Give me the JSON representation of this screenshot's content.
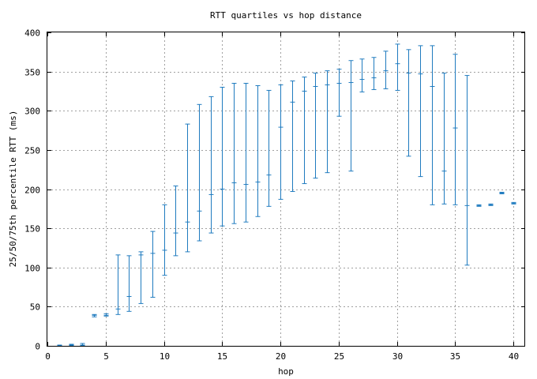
{
  "chart_data": {
    "type": "errorbar",
    "title": "RTT quartiles vs hop distance",
    "xlabel": "hop",
    "ylabel": "25/50/75th percentile RTT (ms)",
    "xlim": [
      0,
      41
    ],
    "ylim": [
      0,
      400
    ],
    "xticks": [
      0,
      5,
      10,
      15,
      20,
      25,
      30,
      35,
      40
    ],
    "yticks": [
      0,
      50,
      100,
      150,
      200,
      250,
      300,
      350,
      400
    ],
    "grid": true,
    "color": "#1f7bbf",
    "points": [
      {
        "hop": 1,
        "p25": 0,
        "p50": 1,
        "p75": 1
      },
      {
        "hop": 2,
        "p25": 0,
        "p50": 1,
        "p75": 2
      },
      {
        "hop": 3,
        "p25": 0,
        "p50": 1,
        "p75": 3
      },
      {
        "hop": 4,
        "p25": 37,
        "p50": 39,
        "p75": 40
      },
      {
        "hop": 5,
        "p25": 38,
        "p50": 39,
        "p75": 41
      },
      {
        "hop": 6,
        "p25": 40,
        "p50": 47,
        "p75": 116
      },
      {
        "hop": 7,
        "p25": 44,
        "p50": 63,
        "p75": 115
      },
      {
        "hop": 8,
        "p25": 54,
        "p50": 116,
        "p75": 120
      },
      {
        "hop": 9,
        "p25": 62,
        "p50": 118,
        "p75": 146
      },
      {
        "hop": 10,
        "p25": 90,
        "p50": 122,
        "p75": 180
      },
      {
        "hop": 11,
        "p25": 115,
        "p50": 144,
        "p75": 204
      },
      {
        "hop": 12,
        "p25": 120,
        "p50": 158,
        "p75": 283
      },
      {
        "hop": 13,
        "p25": 134,
        "p50": 172,
        "p75": 308
      },
      {
        "hop": 14,
        "p25": 144,
        "p50": 193,
        "p75": 318
      },
      {
        "hop": 15,
        "p25": 153,
        "p50": 200,
        "p75": 330
      },
      {
        "hop": 16,
        "p25": 156,
        "p50": 208,
        "p75": 335
      },
      {
        "hop": 17,
        "p25": 158,
        "p50": 206,
        "p75": 335
      },
      {
        "hop": 18,
        "p25": 165,
        "p50": 209,
        "p75": 332
      },
      {
        "hop": 19,
        "p25": 178,
        "p50": 218,
        "p75": 326
      },
      {
        "hop": 20,
        "p25": 187,
        "p50": 279,
        "p75": 333
      },
      {
        "hop": 21,
        "p25": 197,
        "p50": 311,
        "p75": 338
      },
      {
        "hop": 22,
        "p25": 207,
        "p50": 325,
        "p75": 343
      },
      {
        "hop": 23,
        "p25": 214,
        "p50": 331,
        "p75": 348
      },
      {
        "hop": 24,
        "p25": 221,
        "p50": 333,
        "p75": 351
      },
      {
        "hop": 25,
        "p25": 293,
        "p50": 335,
        "p75": 353
      },
      {
        "hop": 26,
        "p25": 223,
        "p50": 336,
        "p75": 364
      },
      {
        "hop": 27,
        "p25": 324,
        "p50": 340,
        "p75": 366
      },
      {
        "hop": 28,
        "p25": 327,
        "p50": 342,
        "p75": 368
      },
      {
        "hop": 29,
        "p25": 328,
        "p50": 351,
        "p75": 376
      },
      {
        "hop": 30,
        "p25": 326,
        "p50": 360,
        "p75": 385
      },
      {
        "hop": 31,
        "p25": 242,
        "p50": 348,
        "p75": 378
      },
      {
        "hop": 32,
        "p25": 216,
        "p50": 347,
        "p75": 383
      },
      {
        "hop": 33,
        "p25": 180,
        "p50": 331,
        "p75": 383
      },
      {
        "hop": 34,
        "p25": 181,
        "p50": 223,
        "p75": 348
      },
      {
        "hop": 35,
        "p25": 180,
        "p50": 278,
        "p75": 372
      },
      {
        "hop": 36,
        "p25": 103,
        "p50": 179,
        "p75": 345
      },
      {
        "hop": 37,
        "p25": 178,
        "p50": 179,
        "p75": 180
      },
      {
        "hop": 38,
        "p25": 179,
        "p50": 180,
        "p75": 181
      },
      {
        "hop": 39,
        "p25": 194,
        "p50": 195,
        "p75": 196
      },
      {
        "hop": 40,
        "p25": 181,
        "p50": 182,
        "p75": 183
      }
    ]
  }
}
